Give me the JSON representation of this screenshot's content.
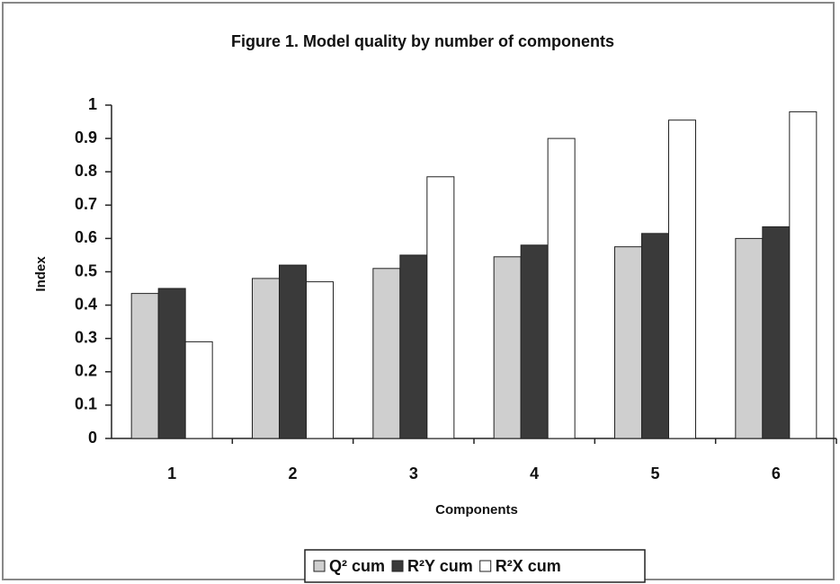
{
  "chart_data": {
    "type": "bar",
    "title": "Figure 1.    Model quality by number of components",
    "x_label": "Components",
    "y_label": "Index",
    "categories": [
      "1",
      "2",
      "3",
      "4",
      "5",
      "6"
    ],
    "series": [
      {
        "name": "Q² cum",
        "color": "#cfcfcf",
        "values": [
          0.435,
          0.48,
          0.51,
          0.545,
          0.575,
          0.6
        ]
      },
      {
        "name": "R²Y cum",
        "color": "#3a3a3a",
        "values": [
          0.45,
          0.52,
          0.55,
          0.58,
          0.615,
          0.635
        ]
      },
      {
        "name": "R²X cum",
        "color": "#ffffff",
        "values": [
          0.29,
          0.47,
          0.785,
          0.9,
          0.955,
          0.98
        ]
      }
    ],
    "ylim": [
      0,
      1
    ],
    "yticks": [
      0,
      0.1,
      0.2,
      0.3,
      0.4,
      0.5,
      0.6,
      0.7,
      0.8,
      0.9,
      1
    ],
    "legend": "bottom"
  }
}
